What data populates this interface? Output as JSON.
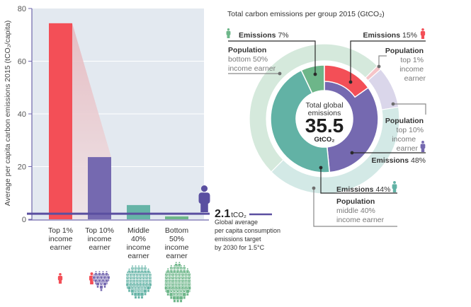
{
  "chart_data": [
    {
      "type": "bar",
      "title": "",
      "xlabel": "",
      "ylabel": "Average per capita carbon emissions 2015 (tCO₂/capita)",
      "ylim": [
        0,
        80
      ],
      "yticks": [
        0,
        20,
        40,
        60,
        80
      ],
      "ytick_labels": [
        "0",
        "20",
        "40",
        "60",
        "80"
      ],
      "grid": true,
      "legend": "none",
      "categories": [
        "Top 1% income earner",
        "Top 10% income earner",
        "Middle 40% income earner",
        "Bottom 50% income earner"
      ],
      "category_lines": [
        [
          "Top 1%",
          "income",
          "earner"
        ],
        [
          "Top 10%",
          "income",
          "earner"
        ],
        [
          "Middle",
          "40%",
          "income",
          "earner"
        ],
        [
          "Bottom",
          "50%",
          "income",
          "earner"
        ]
      ],
      "values": [
        74.4,
        23.6,
        5.4,
        1.1
      ],
      "colors": [
        "#f34f57",
        "#7569b0",
        "#66b4a7",
        "#6db689"
      ],
      "reference_line": {
        "value": 2.1,
        "value_label": "2.1",
        "unit_label": "tCO₂",
        "description_lines": [
          "Global average",
          "per capita consumption",
          "emissions target",
          "by 2030 for 1.5°C"
        ],
        "color": "#5a4fa0"
      }
    },
    {
      "type": "pie",
      "variant": "nested-donut",
      "title": "Total carbon emissions per group 2015 (GtCO₂)",
      "total_gtco2": 35.5,
      "center_label": {
        "line1": "Total global",
        "line2": "emissions",
        "value": "35.5",
        "unit": "GtCO₂"
      },
      "inner_ring": {
        "name": "Emissions",
        "slices": [
          {
            "group": "Top 10% income earner",
            "percent": 48,
            "color": "#7569b0"
          },
          {
            "group": "Middle 40% income earner",
            "percent": 44,
            "color": "#62b2a5"
          },
          {
            "group": "Bottom 50% income earner",
            "percent": 7,
            "color": "#6db689"
          }
        ],
        "nested_overlay": {
          "group": "Top 1% income earner",
          "percent": 15,
          "color": "#f34f57",
          "part_of": "Top 10% income earner"
        }
      },
      "outer_ring": {
        "name": "Population",
        "slices": [
          {
            "group": "Bottom 50% income earner",
            "percent": 50,
            "color": "#d5e9dc"
          },
          {
            "group": "Top 1% income earner",
            "percent": 1,
            "color": "#f5c4c8"
          },
          {
            "group": "Top 10% income earner (excl. top 1%)",
            "percent": 9,
            "color": "#dad6ea"
          },
          {
            "group": "Middle 40% income earner",
            "percent": 40,
            "color": "#d3e9e6"
          }
        ]
      },
      "annotations": {
        "bottom50_emissions": {
          "bold": "Emissions",
          "value": " 7%"
        },
        "bottom50_population": {
          "bold": "Population",
          "lines": [
            "bottom 50%",
            "income earner"
          ]
        },
        "top1_emissions": {
          "bold": "Emissions",
          "value": " 15%"
        },
        "top1_population": {
          "bold": "Population",
          "lines": [
            "top 1%",
            "income",
            "earner"
          ]
        },
        "top10_population": {
          "bold": "Population",
          "lines": [
            "top 10%",
            "income",
            "earner"
          ]
        },
        "top10_emissions": {
          "bold": "Emissions",
          "value": " 48%"
        },
        "middle40_emissions": {
          "bold": "Emissions",
          "value": " 44%"
        },
        "middle40_population": {
          "bold": "Population",
          "lines": [
            "middle 40%",
            "income earner"
          ]
        }
      }
    }
  ],
  "icons": {
    "person": "person-icon",
    "crowd": "crowd-icon"
  }
}
